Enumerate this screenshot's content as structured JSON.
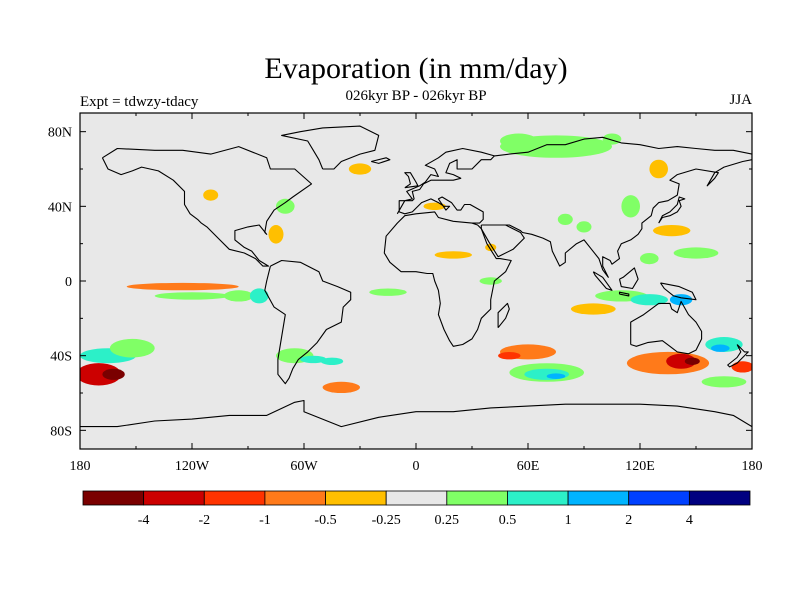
{
  "chart_data": {
    "type": "heatmap",
    "title": "Evaporation (in mm/day)",
    "subtitle": "026kyr BP - 026kyr BP",
    "left_label": "Expt = tdwzy-tdacy",
    "right_label": "JJA",
    "x_ticks": [
      "180",
      "120W",
      "60W",
      "0",
      "60E",
      "120E",
      "180"
    ],
    "x_tick_values": [
      -180,
      -120,
      -60,
      0,
      60,
      120,
      180
    ],
    "y_ticks": [
      "80N",
      "40N",
      "0",
      "40S",
      "80S"
    ],
    "y_tick_values": [
      80,
      40,
      0,
      -40,
      -80
    ],
    "xlim": [
      -180,
      180
    ],
    "ylim": [
      -90,
      90
    ],
    "legend_placement": "bottom",
    "colorbar": {
      "colors": [
        "#7a0000",
        "#cc0000",
        "#ff3300",
        "#ff7a1a",
        "#ffbf00",
        "#e8e8e8",
        "#80ff66",
        "#2cf0c8",
        "#00b4ff",
        "#0040ff",
        "#000080"
      ],
      "labels": [
        "-4",
        "-2",
        "-1",
        "-0.5",
        "-0.25",
        "0.25",
        "0.5",
        "1",
        "2",
        "4"
      ]
    },
    "anomaly_regions": [
      {
        "lon": -170,
        "lat": -50,
        "rlon": 12,
        "rlat": 6,
        "value": -2
      },
      {
        "lon": -162,
        "lat": -50,
        "rlon": 6,
        "rlat": 3,
        "value": -4
      },
      {
        "lon": -165,
        "lat": -40,
        "rlon": 15,
        "rlat": 4,
        "value": 1
      },
      {
        "lon": -152,
        "lat": -36,
        "rlon": 12,
        "rlat": 5,
        "value": 0.5
      },
      {
        "lon": -125,
        "lat": -3,
        "rlon": 30,
        "rlat": 2,
        "value": -0.5
      },
      {
        "lon": -120,
        "lat": -8,
        "rlon": 20,
        "rlat": 2,
        "value": 0.5
      },
      {
        "lon": -95,
        "lat": -8,
        "rlon": 8,
        "rlat": 3,
        "value": 0.5
      },
      {
        "lon": -84,
        "lat": -8,
        "rlon": 5,
        "rlat": 4,
        "value": 1
      },
      {
        "lon": -65,
        "lat": -40,
        "rlon": 10,
        "rlat": 4,
        "value": 0.5
      },
      {
        "lon": -55,
        "lat": -42,
        "rlon": 7,
        "rlat": 2,
        "value": 1
      },
      {
        "lon": -45,
        "lat": -43,
        "rlon": 6,
        "rlat": 2,
        "value": 1
      },
      {
        "lon": -40,
        "lat": -57,
        "rlon": 10,
        "rlat": 3,
        "value": -0.5
      },
      {
        "lon": -15,
        "lat": -6,
        "rlon": 10,
        "rlat": 2,
        "value": 0.5
      },
      {
        "lon": -30,
        "lat": 60,
        "rlon": 6,
        "rlat": 3,
        "value": -0.25
      },
      {
        "lon": -110,
        "lat": 46,
        "rlon": 4,
        "rlat": 3,
        "value": -0.25
      },
      {
        "lon": -70,
        "lat": 40,
        "rlon": 5,
        "rlat": 4,
        "value": 0.5
      },
      {
        "lon": -75,
        "lat": 25,
        "rlon": 4,
        "rlat": 5,
        "value": -0.25
      },
      {
        "lon": 10,
        "lat": 40,
        "rlon": 6,
        "rlat": 2,
        "value": -0.25
      },
      {
        "lon": 20,
        "lat": 14,
        "rlon": 10,
        "rlat": 2,
        "value": -0.25
      },
      {
        "lon": 40,
        "lat": 0,
        "rlon": 6,
        "rlat": 2,
        "value": 0.5
      },
      {
        "lon": 40,
        "lat": 18,
        "rlon": 3,
        "rlat": 2,
        "value": -0.25
      },
      {
        "lon": 75,
        "lat": 72,
        "rlon": 30,
        "rlat": 6,
        "value": 0.5
      },
      {
        "lon": 55,
        "lat": 75,
        "rlon": 10,
        "rlat": 4,
        "value": 0.5
      },
      {
        "lon": 105,
        "lat": 76,
        "rlon": 5,
        "rlat": 3,
        "value": 0.5
      },
      {
        "lon": 130,
        "lat": 60,
        "rlon": 5,
        "rlat": 5,
        "value": -0.25
      },
      {
        "lon": 115,
        "lat": 40,
        "rlon": 5,
        "rlat": 6,
        "value": 0.5
      },
      {
        "lon": 137,
        "lat": 27,
        "rlon": 10,
        "rlat": 3,
        "value": -0.25
      },
      {
        "lon": 150,
        "lat": 15,
        "rlon": 12,
        "rlat": 3,
        "value": 0.5
      },
      {
        "lon": 125,
        "lat": 12,
        "rlon": 5,
        "rlat": 3,
        "value": 0.5
      },
      {
        "lon": 90,
        "lat": 29,
        "rlon": 4,
        "rlat": 3,
        "value": 0.5
      },
      {
        "lon": 80,
        "lat": 33,
        "rlon": 4,
        "rlat": 3,
        "value": 0.5
      },
      {
        "lon": 110,
        "lat": -8,
        "rlon": 14,
        "rlat": 3,
        "value": 0.5
      },
      {
        "lon": 125,
        "lat": -10,
        "rlon": 10,
        "rlat": 3,
        "value": 1
      },
      {
        "lon": 142,
        "lat": -10,
        "rlon": 6,
        "rlat": 3,
        "value": 2
      },
      {
        "lon": 95,
        "lat": -15,
        "rlon": 12,
        "rlat": 3,
        "value": -0.25
      },
      {
        "lon": 60,
        "lat": -38,
        "rlon": 15,
        "rlat": 4,
        "value": -0.5
      },
      {
        "lon": 50,
        "lat": -40,
        "rlon": 6,
        "rlat": 2,
        "value": -1
      },
      {
        "lon": 70,
        "lat": -49,
        "rlon": 20,
        "rlat": 5,
        "value": 0.5
      },
      {
        "lon": 70,
        "lat": -50,
        "rlon": 12,
        "rlat": 3,
        "value": 1
      },
      {
        "lon": 75,
        "lat": -51,
        "rlon": 5,
        "rlat": 1.5,
        "value": 2
      },
      {
        "lon": 135,
        "lat": -44,
        "rlon": 22,
        "rlat": 6,
        "value": -0.5
      },
      {
        "lon": 142,
        "lat": -43,
        "rlon": 8,
        "rlat": 4,
        "value": -2
      },
      {
        "lon": 148,
        "lat": -43,
        "rlon": 4,
        "rlat": 2,
        "value": -4
      },
      {
        "lon": 165,
        "lat": -34,
        "rlon": 10,
        "rlat": 4,
        "value": 1
      },
      {
        "lon": 163,
        "lat": -36,
        "rlon": 5,
        "rlat": 2,
        "value": 2
      },
      {
        "lon": 175,
        "lat": -46,
        "rlon": 6,
        "rlat": 3,
        "value": -1
      },
      {
        "lon": 165,
        "lat": -54,
        "rlon": 12,
        "rlat": 3,
        "value": 0.5
      }
    ]
  }
}
